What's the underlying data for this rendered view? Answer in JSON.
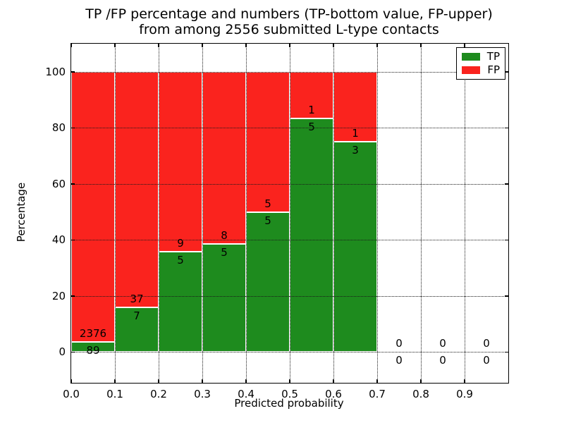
{
  "figure": {
    "title_line1": "TP /FP percentage and numbers (TP-bottom value, FP-upper)",
    "title_line2": "from among 2556 submitted L-type contacts"
  },
  "axes": {
    "xlabel": "Predicted probability",
    "ylabel": "Percentage",
    "x_ticks": [
      {
        "label": "0.0",
        "value": 0.0
      },
      {
        "label": "0.1",
        "value": 0.1
      },
      {
        "label": "0.2",
        "value": 0.2
      },
      {
        "label": "0.3",
        "value": 0.3
      },
      {
        "label": "0.4",
        "value": 0.4
      },
      {
        "label": "0.5",
        "value": 0.5
      },
      {
        "label": "0.6",
        "value": 0.6
      },
      {
        "label": "0.7",
        "value": 0.7
      },
      {
        "label": "0.8",
        "value": 0.8
      },
      {
        "label": "0.9",
        "value": 0.9
      }
    ],
    "y_ticks": [
      {
        "label": "0",
        "value": 0
      },
      {
        "label": "20",
        "value": 20
      },
      {
        "label": "40",
        "value": 40
      },
      {
        "label": "60",
        "value": 60
      },
      {
        "label": "80",
        "value": 80
      },
      {
        "label": "100",
        "value": 100
      }
    ]
  },
  "legend": {
    "items": [
      {
        "label": "TP",
        "color": "#1e8b1e"
      },
      {
        "label": "FP",
        "color": "#fa231e"
      }
    ]
  },
  "colors": {
    "tp": "#1e8b1e",
    "fp": "#fa231e",
    "bar_edge": "#ffffff",
    "grid": "#1a1a1a"
  },
  "chart_data": {
    "type": "bar",
    "subtype": "stacked-percentage",
    "title": "TP /FP percentage and numbers (TP-bottom value, FP-upper) from among 2556 submitted L-type contacts",
    "total_submitted": 2556,
    "xlabel": "Predicted probability",
    "ylabel": "Percentage",
    "xlim": [
      0,
      1.0
    ],
    "ylim": [
      -11,
      110
    ],
    "grid": true,
    "legend_position": "upper right",
    "categories": [
      "0.0-0.1",
      "0.1-0.2",
      "0.2-0.3",
      "0.3-0.4",
      "0.4-0.5",
      "0.5-0.6",
      "0.6-0.7",
      "0.7-0.8",
      "0.8-0.9",
      "0.9-1.0"
    ],
    "series": [
      {
        "name": "TP",
        "counts": [
          89,
          7,
          5,
          5,
          5,
          5,
          3,
          0,
          0,
          0
        ]
      },
      {
        "name": "FP",
        "counts": [
          2376,
          37,
          9,
          8,
          5,
          1,
          1,
          0,
          0,
          0
        ]
      }
    ],
    "tp_percent": [
      3.61,
      15.91,
      35.71,
      38.46,
      50.0,
      83.33,
      75.0,
      0,
      0,
      0
    ],
    "bins": [
      {
        "x0": 0.0,
        "x1": 0.1,
        "tp": 89,
        "fp": 2376
      },
      {
        "x0": 0.1,
        "x1": 0.2,
        "tp": 7,
        "fp": 37
      },
      {
        "x0": 0.2,
        "x1": 0.3,
        "tp": 5,
        "fp": 9
      },
      {
        "x0": 0.3,
        "x1": 0.4,
        "tp": 5,
        "fp": 8
      },
      {
        "x0": 0.4,
        "x1": 0.5,
        "tp": 5,
        "fp": 5
      },
      {
        "x0": 0.5,
        "x1": 0.6,
        "tp": 5,
        "fp": 1
      },
      {
        "x0": 0.6,
        "x1": 0.7,
        "tp": 3,
        "fp": 1
      },
      {
        "x0": 0.7,
        "x1": 0.8,
        "tp": 0,
        "fp": 0
      },
      {
        "x0": 0.8,
        "x1": 0.9,
        "tp": 0,
        "fp": 0
      },
      {
        "x0": 0.9,
        "x1": 1.0,
        "tp": 0,
        "fp": 0
      }
    ]
  }
}
